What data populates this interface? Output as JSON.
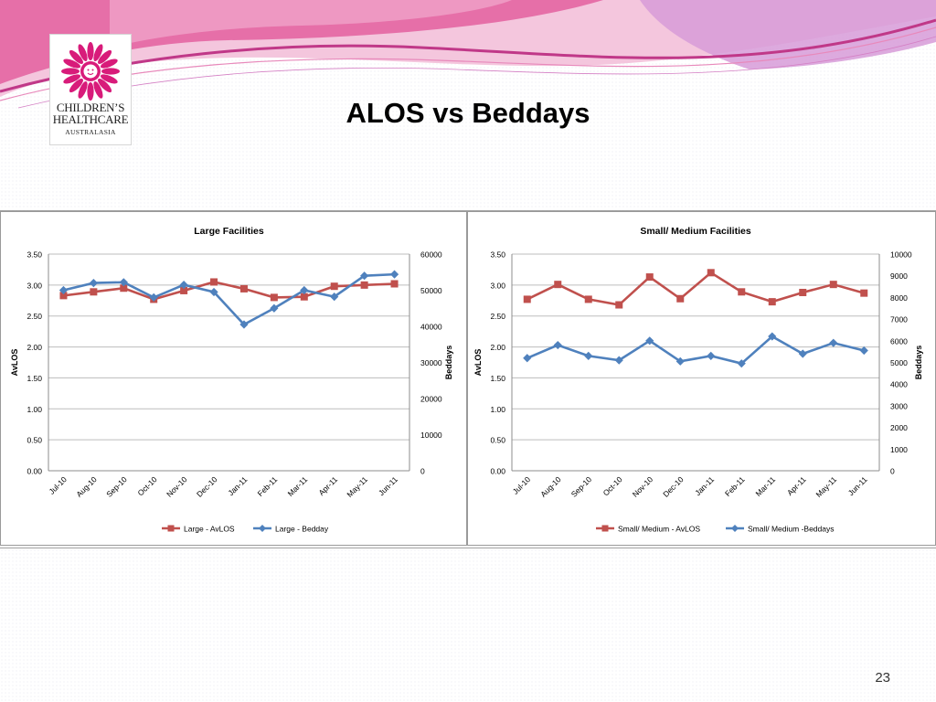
{
  "slide": {
    "title": "ALOS vs Beddays",
    "page_number": "23"
  },
  "logo": {
    "line1": "CHILDREN’S",
    "line2": "HEALTHCARE",
    "line3": "AUSTRALASIA",
    "colors": {
      "flower": "#d81b7a",
      "center": "#ffffff",
      "frame": "#d6d6d6"
    }
  },
  "header": {
    "colors": {
      "pink": "#e0509a",
      "light_pink": "#f2b3d2",
      "lavender": "#c9a8dd"
    }
  },
  "chart_data": [
    {
      "type": "line",
      "title": "Large Facilities",
      "categories": [
        "Jul-10",
        "Aug-10",
        "Sep-10",
        "Oct-10",
        "Nov-10",
        "Dec-10",
        "Jan-11",
        "Feb-11",
        "Mar-11",
        "Apr-11",
        "May-11",
        "Jun-11"
      ],
      "ylabel": "AvLOS",
      "y2label": "Beddays",
      "ylim": [
        0,
        3.5
      ],
      "y2lim": [
        0,
        60000
      ],
      "yticks": [
        "0.00",
        "0.50",
        "1.00",
        "1.50",
        "2.00",
        "2.50",
        "3.00",
        "3.50"
      ],
      "y2ticks": [
        "0",
        "10000",
        "20000",
        "30000",
        "40000",
        "50000",
        "60000"
      ],
      "grid": true,
      "legend": "bottom",
      "series": [
        {
          "name": "Large - AvLOS",
          "axis": "left",
          "color": "#c0504d",
          "marker": "square",
          "values": [
            2.83,
            2.89,
            2.95,
            2.77,
            2.91,
            3.05,
            2.94,
            2.8,
            2.81,
            2.98,
            3.0,
            3.02
          ]
        },
        {
          "name": "Large - Bedday",
          "axis": "right",
          "color": "#4f81bd",
          "marker": "diamond",
          "values": [
            50000,
            52000,
            52200,
            48000,
            51500,
            49500,
            40500,
            45000,
            50000,
            48200,
            54000,
            54400
          ]
        }
      ]
    },
    {
      "type": "line",
      "title": "Small/ Medium Facilities",
      "categories": [
        "Jul-10",
        "Aug-10",
        "Sep-10",
        "Oct-10",
        "Nov-10",
        "Dec-10",
        "Jan-11",
        "Feb-11",
        "Mar-11",
        "Apr-11",
        "May-11",
        "Jun-11"
      ],
      "ylabel": "AvLOS",
      "y2label": "Beddays",
      "ylim": [
        0,
        3.5
      ],
      "y2lim": [
        0,
        10000
      ],
      "yticks": [
        "0.00",
        "0.50",
        "1.00",
        "1.50",
        "2.00",
        "2.50",
        "3.00",
        "3.50"
      ],
      "y2ticks": [
        "0",
        "1000",
        "2000",
        "3000",
        "4000",
        "5000",
        "6000",
        "7000",
        "8000",
        "9000",
        "10000"
      ],
      "grid": true,
      "legend": "bottom",
      "series": [
        {
          "name": "Small/ Medium - AvLOS",
          "axis": "left",
          "color": "#c0504d",
          "marker": "square",
          "values": [
            2.77,
            3.01,
            2.77,
            2.68,
            3.13,
            2.78,
            3.2,
            2.89,
            2.73,
            2.88,
            3.01,
            2.87
          ]
        },
        {
          "name": "Small/ Medium -Beddays",
          "axis": "right",
          "color": "#4f81bd",
          "marker": "diamond",
          "values": [
            5200,
            5800,
            5300,
            5100,
            6000,
            5050,
            5300,
            4950,
            6200,
            5400,
            5900,
            5550
          ]
        }
      ]
    }
  ]
}
